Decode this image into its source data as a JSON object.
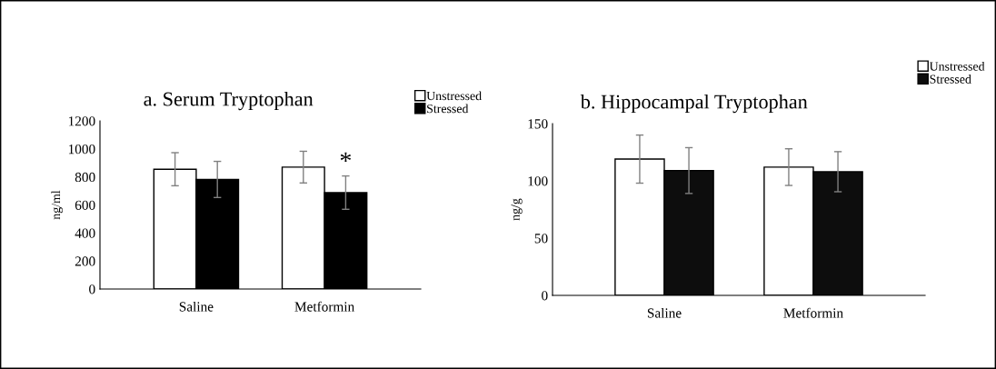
{
  "chart_data": [
    {
      "type": "bar",
      "title": "a. Serum Tryptophan",
      "ylabel": "ng/ml",
      "categories": [
        "Saline",
        "Metformin"
      ],
      "series": [
        {
          "name": "Unstressed",
          "color": "#ffffff",
          "values": [
            855,
            870
          ],
          "errors": [
            118,
            113
          ]
        },
        {
          "name": "Stressed",
          "color": "#000000",
          "values": [
            782,
            688
          ],
          "errors": [
            129,
            119
          ]
        }
      ],
      "ylim": [
        0,
        1200
      ],
      "yticks": [
        0,
        200,
        400,
        600,
        800,
        1000,
        1200
      ],
      "grid": false,
      "legend": "top right",
      "annotations": [
        {
          "text": "*",
          "x": "Metformin",
          "y": 809
        }
      ]
    },
    {
      "type": "bar",
      "title": "b. Hippocampal Tryptophan",
      "ylabel": "ng/g",
      "categories": [
        "Saline",
        "Metformin"
      ],
      "series": [
        {
          "name": "Unstressed",
          "color": "#ffffff",
          "values": [
            119,
            112
          ],
          "errors": [
            21,
            16
          ]
        },
        {
          "name": "Stressed",
          "color": "#0d0d0d",
          "values": [
            109,
            108
          ],
          "errors": [
            20,
            17.5
          ]
        }
      ],
      "ylim": [
        0,
        150
      ],
      "yticks": [
        0,
        50,
        100,
        150
      ],
      "grid": false,
      "legend": "top right"
    }
  ]
}
